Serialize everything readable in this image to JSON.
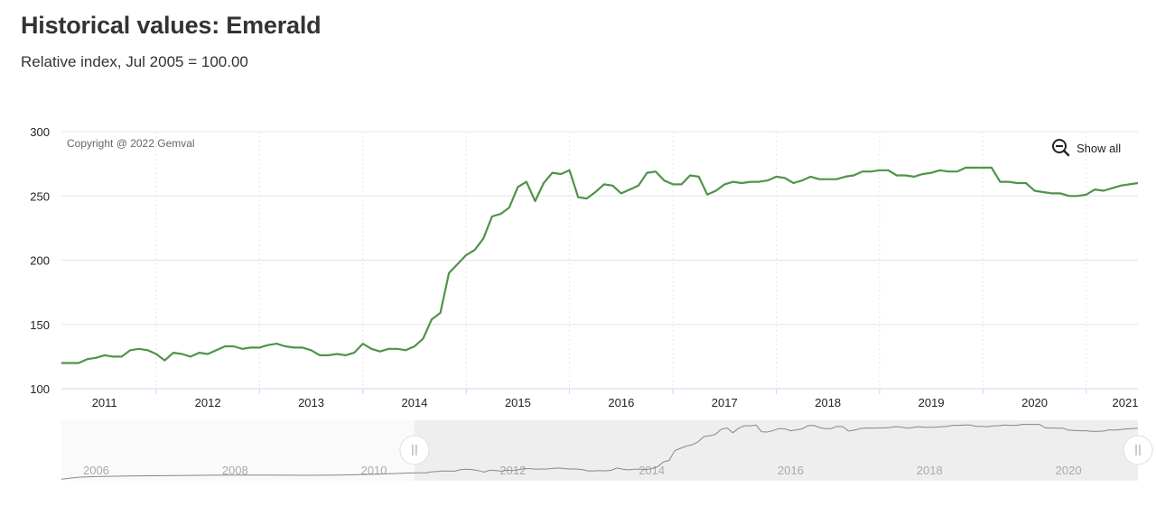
{
  "header": {
    "title": "Historical values: Emerald",
    "subtitle": "Relative index, Jul 2005 = 100.00"
  },
  "credit": "Copyright @ 2022 Gemval",
  "reset_zoom": {
    "label": "Show all",
    "icon": "zoom-out-icon"
  },
  "colors": {
    "line": "#4f934a",
    "navigator_line": "#888888",
    "navigator_mask": "#eeeeee",
    "grid": "#e6e6e6"
  },
  "chart_data": {
    "type": "line",
    "title": "Historical values: Emerald",
    "subtitle": "Relative index, Jul 2005 = 100.00",
    "xlabel": "",
    "ylabel": "",
    "x_range": [
      "2010-08",
      "2021-01"
    ],
    "ylim": [
      100,
      300
    ],
    "y_ticks": [
      100,
      150,
      200,
      250,
      300
    ],
    "x_ticks": [
      "2011",
      "2012",
      "2013",
      "2014",
      "2015",
      "2016",
      "2017",
      "2018",
      "2019",
      "2020",
      "2021"
    ],
    "grid": true,
    "series": [
      {
        "values": [
          [
            "2010-08",
            120
          ],
          [
            "2010-09",
            120
          ],
          [
            "2010-10",
            120
          ],
          [
            "2010-11",
            123
          ],
          [
            "2010-12",
            124
          ],
          [
            "2011-01",
            126
          ],
          [
            "2011-02",
            125
          ],
          [
            "2011-03",
            125
          ],
          [
            "2011-04",
            130
          ],
          [
            "2011-05",
            131
          ],
          [
            "2011-06",
            130
          ],
          [
            "2011-07",
            127
          ],
          [
            "2011-08",
            122
          ],
          [
            "2011-09",
            128
          ],
          [
            "2011-10",
            127
          ],
          [
            "2011-11",
            125
          ],
          [
            "2011-12",
            128
          ],
          [
            "2012-01",
            127
          ],
          [
            "2012-02",
            130
          ],
          [
            "2012-03",
            133
          ],
          [
            "2012-04",
            133
          ],
          [
            "2012-05",
            131
          ],
          [
            "2012-06",
            132
          ],
          [
            "2012-07",
            132
          ],
          [
            "2012-08",
            134
          ],
          [
            "2012-09",
            135
          ],
          [
            "2012-10",
            133
          ],
          [
            "2012-11",
            132
          ],
          [
            "2012-12",
            132
          ],
          [
            "2013-01",
            130
          ],
          [
            "2013-02",
            126
          ],
          [
            "2013-03",
            126
          ],
          [
            "2013-04",
            127
          ],
          [
            "2013-05",
            126
          ],
          [
            "2013-06",
            128
          ],
          [
            "2013-07",
            135
          ],
          [
            "2013-08",
            131
          ],
          [
            "2013-09",
            129
          ],
          [
            "2013-10",
            131
          ],
          [
            "2013-11",
            131
          ],
          [
            "2013-12",
            130
          ],
          [
            "2014-01",
            133
          ],
          [
            "2014-02",
            139
          ],
          [
            "2014-03",
            154
          ],
          [
            "2014-04",
            159
          ],
          [
            "2014-05",
            190
          ],
          [
            "2014-06",
            197
          ],
          [
            "2014-07",
            204
          ],
          [
            "2014-08",
            208
          ],
          [
            "2014-09",
            217
          ],
          [
            "2014-10",
            234
          ],
          [
            "2014-11",
            236
          ],
          [
            "2014-12",
            241
          ],
          [
            "2015-01",
            257
          ],
          [
            "2015-02",
            261
          ],
          [
            "2015-03",
            246
          ],
          [
            "2015-04",
            260
          ],
          [
            "2015-05",
            268
          ],
          [
            "2015-06",
            267
          ],
          [
            "2015-07",
            270
          ],
          [
            "2015-08",
            249
          ],
          [
            "2015-09",
            248
          ],
          [
            "2015-10",
            253
          ],
          [
            "2015-11",
            259
          ],
          [
            "2015-12",
            258
          ],
          [
            "2016-01",
            252
          ],
          [
            "2016-02",
            255
          ],
          [
            "2016-03",
            258
          ],
          [
            "2016-04",
            268
          ],
          [
            "2016-05",
            269
          ],
          [
            "2016-06",
            262
          ],
          [
            "2016-07",
            259
          ],
          [
            "2016-08",
            259
          ],
          [
            "2016-09",
            266
          ],
          [
            "2016-10",
            265
          ],
          [
            "2016-11",
            251
          ],
          [
            "2016-12",
            254
          ],
          [
            "2017-01",
            259
          ],
          [
            "2017-02",
            261
          ],
          [
            "2017-03",
            260
          ],
          [
            "2017-04",
            261
          ],
          [
            "2017-05",
            261
          ],
          [
            "2017-06",
            262
          ],
          [
            "2017-07",
            265
          ],
          [
            "2017-08",
            264
          ],
          [
            "2017-09",
            260
          ],
          [
            "2017-10",
            262
          ],
          [
            "2017-11",
            265
          ],
          [
            "2017-12",
            263
          ],
          [
            "2018-01",
            263
          ],
          [
            "2018-02",
            263
          ],
          [
            "2018-03",
            265
          ],
          [
            "2018-04",
            266
          ],
          [
            "2018-05",
            269
          ],
          [
            "2018-06",
            269
          ],
          [
            "2018-07",
            270
          ],
          [
            "2018-08",
            270
          ],
          [
            "2018-09",
            266
          ],
          [
            "2018-10",
            266
          ],
          [
            "2018-11",
            265
          ],
          [
            "2018-12",
            267
          ],
          [
            "2019-01",
            268
          ],
          [
            "2019-02",
            270
          ],
          [
            "2019-03",
            269
          ],
          [
            "2019-04",
            269
          ],
          [
            "2019-05",
            272
          ],
          [
            "2019-06",
            272
          ],
          [
            "2019-07",
            272
          ],
          [
            "2019-08",
            272
          ],
          [
            "2019-09",
            261
          ],
          [
            "2019-10",
            261
          ],
          [
            "2019-11",
            260
          ],
          [
            "2019-12",
            260
          ],
          [
            "2020-01",
            254
          ],
          [
            "2020-02",
            253
          ],
          [
            "2020-03",
            252
          ],
          [
            "2020-04",
            252
          ],
          [
            "2020-05",
            250
          ],
          [
            "2020-06",
            250
          ],
          [
            "2020-07",
            251
          ],
          [
            "2020-08",
            255
          ],
          [
            "2020-09",
            254
          ],
          [
            "2020-10",
            256
          ],
          [
            "2020-11",
            258
          ],
          [
            "2020-12",
            259
          ],
          [
            "2021-01",
            260
          ]
        ]
      }
    ],
    "navigator": {
      "x_range": [
        "2005-07",
        "2021-01"
      ],
      "x_ticks": [
        "2006",
        "2008",
        "2010",
        "2012",
        "2014",
        "2016",
        "2018",
        "2020"
      ],
      "selected_range": [
        "2010-08",
        "2021-01"
      ],
      "early_values": [
        [
          "2005-07",
          100
        ],
        [
          "2005-10",
          106
        ],
        [
          "2006-01",
          108
        ],
        [
          "2006-07",
          110
        ],
        [
          "2007-01",
          111
        ],
        [
          "2007-07",
          112
        ],
        [
          "2008-01",
          113
        ],
        [
          "2008-07",
          113
        ],
        [
          "2009-01",
          112
        ],
        [
          "2009-07",
          113
        ],
        [
          "2010-01",
          115
        ],
        [
          "2010-07",
          119
        ]
      ]
    }
  }
}
